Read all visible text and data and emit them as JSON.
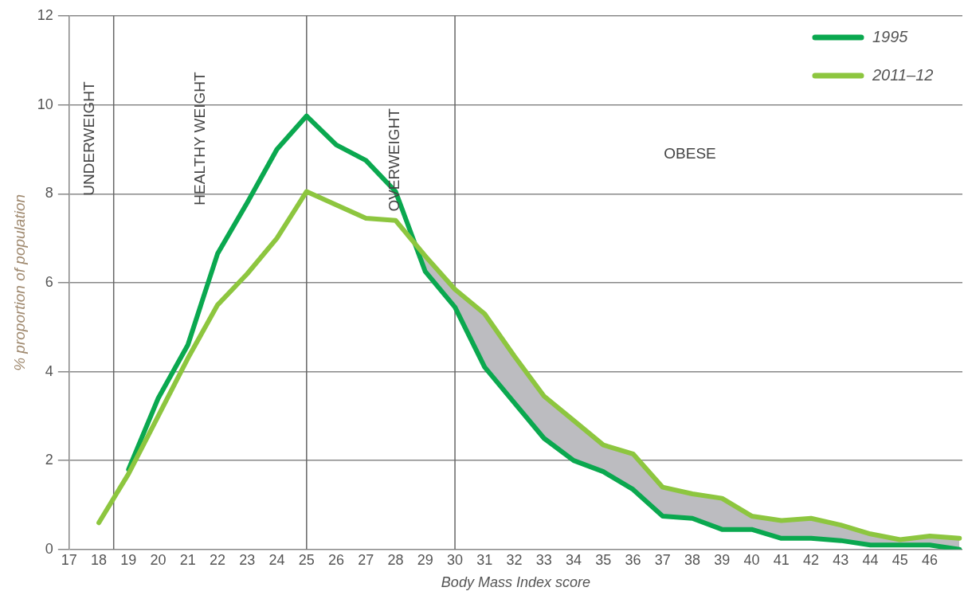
{
  "chart_data": {
    "type": "line",
    "xlabel": "Body Mass Index score",
    "ylabel": "% proportion of population",
    "xlim": [
      17,
      47.1
    ],
    "xticks": [
      17,
      18,
      19,
      20,
      21,
      22,
      23,
      24,
      25,
      26,
      27,
      28,
      29,
      30,
      31,
      32,
      33,
      34,
      35,
      36,
      37,
      38,
      39,
      40,
      41,
      42,
      43,
      44,
      45,
      46
    ],
    "ylim": [
      0,
      12
    ],
    "yticks": [
      0,
      2,
      4,
      6,
      8,
      10,
      12
    ],
    "grid": "y",
    "legend": "top right",
    "marker": "none",
    "line_style": "solid",
    "series": [
      {
        "name": "1995",
        "color": "#0aa84f",
        "x": [
          19,
          20,
          21,
          22,
          23,
          24,
          25,
          26,
          27,
          28,
          29,
          30,
          31,
          32,
          33,
          34,
          35,
          36,
          37,
          38,
          39,
          40,
          41,
          42,
          43,
          44,
          45,
          46,
          47
        ],
        "values": [
          1.8,
          3.4,
          4.6,
          6.65,
          7.8,
          9.0,
          9.75,
          9.1,
          8.75,
          8.05,
          6.25,
          5.45,
          4.1,
          3.3,
          2.5,
          2.0,
          1.75,
          1.35,
          0.75,
          0.7,
          0.45,
          0.45,
          0.25,
          0.25,
          0.2,
          0.1,
          0.1,
          0.1,
          0.0
        ]
      },
      {
        "name": "2011–12",
        "color": "#8dc63f",
        "x": [
          18,
          19,
          20,
          21,
          22,
          23,
          24,
          25,
          26,
          27,
          28,
          29,
          30,
          31,
          32,
          33,
          34,
          35,
          36,
          37,
          38,
          39,
          40,
          41,
          42,
          43,
          44,
          45,
          46,
          47
        ],
        "values": [
          0.6,
          1.7,
          3.0,
          4.3,
          5.5,
          6.2,
          7.0,
          8.05,
          7.75,
          7.45,
          7.4,
          6.6,
          5.85,
          5.3,
          4.35,
          3.45,
          2.9,
          2.35,
          2.15,
          1.4,
          1.25,
          1.15,
          0.75,
          0.65,
          0.7,
          0.55,
          0.35,
          0.22,
          0.3,
          0.25
        ]
      }
    ],
    "ref_lines": [
      {
        "axis": "x",
        "value": 18.5,
        "color": "#666666"
      },
      {
        "axis": "x",
        "value": 25,
        "color": "#666666"
      },
      {
        "axis": "x",
        "value": 30,
        "color": "#666666"
      }
    ],
    "annotations": [
      "UNDERWEIGHT",
      "HEALTHY WEIGHT",
      "OVERWEIGHT",
      "OBESE"
    ]
  }
}
